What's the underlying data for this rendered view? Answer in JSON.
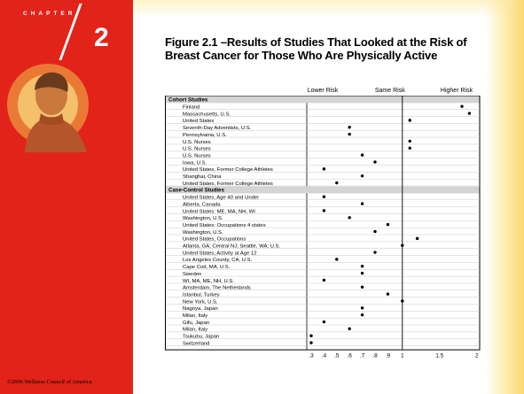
{
  "slide": {
    "chapter_label": "CHAPTER",
    "chapter_number": "2",
    "title": "Figure 2.1 –Results of Studies That Looked at the Risk of Breast Cancer for Those Who Are Physically Active",
    "copyright": "©2006 Wellness Council of America",
    "colors": {
      "side_panel": "#e2231a",
      "accent_band": "#fbd872"
    }
  },
  "chart_data": {
    "type": "scatter",
    "header_labels": [
      "Lower Risk",
      "Same Risk",
      "Higher Risk"
    ],
    "x_ticks": [
      {
        "value": 0.3,
        "label": ".3"
      },
      {
        "value": 0.4,
        "label": ".4"
      },
      {
        "value": 0.5,
        "label": ".5"
      },
      {
        "value": 0.6,
        "label": ".6"
      },
      {
        "value": 0.7,
        "label": ".7"
      },
      {
        "value": 0.8,
        "label": ".8"
      },
      {
        "value": 0.9,
        "label": ".9"
      },
      {
        "value": 1.0,
        "label": "1"
      },
      {
        "value": 1.5,
        "label": "1.5"
      },
      {
        "value": 2.0,
        "label": "2"
      }
    ],
    "reference_line": 1.0,
    "grid": true,
    "groups": [
      {
        "name": "Cohort Studies",
        "studies": [
          {
            "label": "Finland",
            "value": 1.8
          },
          {
            "label": "Massachusetts, U.S.",
            "value": 1.9
          },
          {
            "label": "United States",
            "value": 1.1
          },
          {
            "label": "Seventh-Day Adventists, U.S.",
            "value": 0.6
          },
          {
            "label": "Pennsylvania, U.S.",
            "value": 0.6
          },
          {
            "label": "U.S. Nurses",
            "value": 1.1
          },
          {
            "label": "U.S. Nurses",
            "value": 1.1
          },
          {
            "label": "U.S. Nurses",
            "value": 0.7
          },
          {
            "label": "Iowa, U.S.",
            "value": 0.8
          },
          {
            "label": "United States, Former College Athletes",
            "value": 0.4
          },
          {
            "label": "Shanghai, China",
            "value": 0.7
          },
          {
            "label": "United States, Former College Athletes",
            "value": 0.5
          }
        ]
      },
      {
        "name": "Case-Control Studies",
        "studies": [
          {
            "label": "United States, Age 40 and Under",
            "value": 0.4
          },
          {
            "label": "Alberta, Canada",
            "value": 0.7
          },
          {
            "label": "United States: ME, MA, NH, WI",
            "value": 0.4
          },
          {
            "label": "Washington, U.S.",
            "value": 0.6
          },
          {
            "label": "United States: Occupations 4 states",
            "value": 0.9
          },
          {
            "label": "Washington, U.S.",
            "value": 0.8
          },
          {
            "label": "United States, Occupations",
            "value": 1.2
          },
          {
            "label": "Atlanta, GA; Central NJ; Seattle, WA; U.S.",
            "value": 1.0
          },
          {
            "label": "United States, Activity at Age 12",
            "value": 0.8
          },
          {
            "label": "Los Angeles County, CA, U.S.",
            "value": 0.5
          },
          {
            "label": "Cape Cod, MA, U.S.",
            "value": 0.7
          },
          {
            "label": "Sweden",
            "value": 0.7
          },
          {
            "label": "WI, MA, ME, NH, U.S.",
            "value": 0.4
          },
          {
            "label": "Amsterdam, The Netherlands",
            "value": 0.7
          },
          {
            "label": "Istanbul, Turkey",
            "value": 0.9
          },
          {
            "label": "New York, U.S.",
            "value": 1.0
          },
          {
            "label": "Nagoya, Japan",
            "value": 0.7
          },
          {
            "label": "Milan, Italy",
            "value": 0.7
          },
          {
            "label": "Gifu, Japan",
            "value": 0.4
          },
          {
            "label": "Milan, Italy",
            "value": 0.6
          },
          {
            "label": "Tsukubu, Japan",
            "value": 0.3
          },
          {
            "label": "Switzerland",
            "value": 0.3
          }
        ]
      }
    ]
  }
}
